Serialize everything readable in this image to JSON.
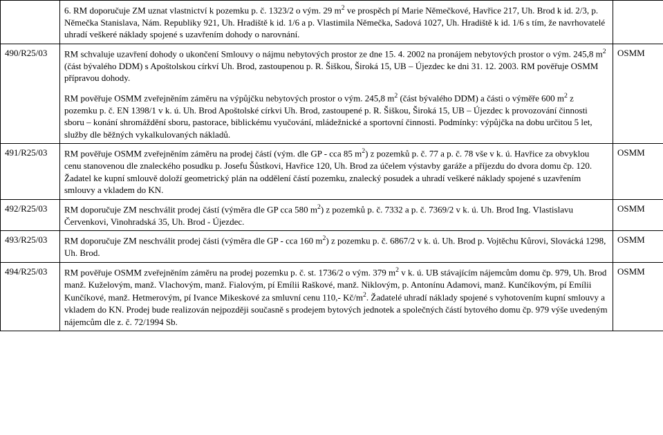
{
  "rows": [
    {
      "ref": "",
      "dept": "",
      "body": [
        "6. RM doporučuje ZM uznat vlastnictví k pozemku p. č. 1323/2 o vým. 29 m<sup>2</sup> ve prospěch pí Marie Němečkové, Havřice 217, Uh. Brod k id. 2/3, p. Němečka Stanislava, Nám. Republiky 921, Uh. Hradiště k id. 1/6 a p. Vlastimila Němečka, Sadová 1027, Uh. Hradiště k id. 1/6 s tím, že navrhovatelé uhradí veškeré náklady spojené s uzavřením dohody o narovnání."
      ]
    },
    {
      "ref": "490/R25/03",
      "dept": "OSMM",
      "body": [
        "RM schvaluje uzavření dohody o ukončení Smlouvy o nájmu nebytových prostor ze dne 15. 4. 2002 na pronájem nebytových prostor o vým. 245,8 m<sup>2</sup> (část bývalého DDM) s Apoštolskou církví Uh. Brod, zastoupenou p. R. Šiškou, Široká 15, UB – Újezdec ke dni 31. 12. 2003. RM pověřuje OSMM přípravou dohody.",
        "RM pověřuje OSMM zveřejněním záměru na výpůjčku nebytových prostor o vým. 245,8 m<sup>2</sup> (část bývalého DDM) a části o výměře 600 m<sup>2</sup> z pozemku p. č. EN 1398/1 v k. ú. Uh. Brod Apoštolské církvi Uh. Brod, zastoupené p. R. Šiškou, Široká 15, UB – Újezdec k provozování činnosti sboru – konání shromáždění sboru, pastorace, biblickému vyučování, mládežnické a sportovní činnosti. Podmínky: výpůjčka na dobu určitou 5 let, služby dle běžných vykalkulovaných nákladů."
      ]
    },
    {
      "ref": "491/R25/03",
      "dept": "OSMM",
      "body": [
        "RM pověřuje OSMM zveřejněním záměru na prodej částí (vým. dle GP - cca 85 m<sup>2</sup>) z pozemků p. č. 77 a p. č. 78 vše v k. ú. Havřice za obvyklou cenu stanovenou dle znaleckého posudku p. Josefu Šůstkovi, Havřice 120, Uh. Brod za účelem výstavby garáže a příjezdu do dvora domu čp. 120. Žadatel ke kupní smlouvě doloží geometrický plán na oddělení částí pozemku, znalecký posudek a uhradí veškeré náklady spojené s uzavřením smlouvy a vkladem do KN."
      ]
    },
    {
      "ref": "492/R25/03",
      "dept": "OSMM",
      "body": [
        "RM doporučuje ZM neschválit prodej částí (výměra dle GP cca 580 m<sup>2</sup>) z pozemků p. č. 7332 a p. č. 7369/2 v k. ú. Uh. Brod Ing. Vlastislavu Červenkovi, Vinohradská 35, Uh. Brod - Újezdec."
      ]
    },
    {
      "ref": "493/R25/03",
      "dept": "OSMM",
      "body": [
        "RM doporučuje ZM neschválit prodej části (výměra dle GP - cca 160 m<sup>2</sup>) z pozemku p. č. 6867/2 v k. ú. Uh. Brod p. Vojtěchu Kůrovi, Slovácká 1298, Uh. Brod."
      ]
    },
    {
      "ref": "494/R25/03",
      "dept": "OSMM",
      "body": [
        "RM pověřuje OSMM zveřejněním záměru na prodej pozemku p. č. st. 1736/2 o vým. 379 m<sup>2</sup> v k. ú. UB stávajícím nájemcům domu čp. 979, Uh. Brod manž. Kuželovým, manž. Vlachovým, manž. Fialovým, pí Emílii Raškové, manž. Niklovým, p. Antonínu Adamovi, manž. Kunčíkovým, pí Emílii Kunčíkové, manž. Hetmerovým, pí Ivance Mikeskové za smluvní cenu 110,- Kč/m<sup>2</sup>. Žadatelé uhradí náklady spojené s vyhotovením kupní smlouvy a vkladem do KN. Prodej bude realizován nejpozději současně s prodejem bytových jednotek a společných částí bytového domu čp. 979 výše uvedeným nájemcům dle z. č. 72/1994 Sb."
      ]
    }
  ]
}
